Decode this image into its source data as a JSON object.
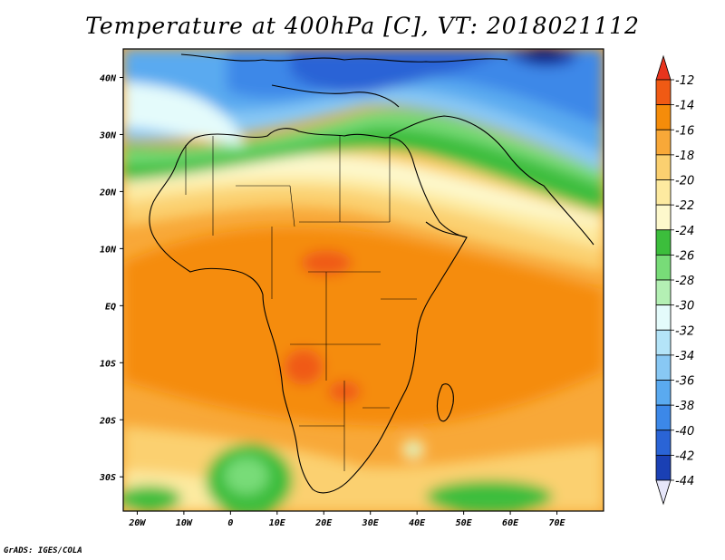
{
  "title": "Temperature at 400hPa [C], VT: 2018021112",
  "credit": "GrADS: IGES/COLA",
  "map": {
    "lon_range": [
      -23,
      80
    ],
    "lat_range": [
      -36,
      45
    ],
    "x_ticks": [
      {
        "lon": -20,
        "label": "20W"
      },
      {
        "lon": -10,
        "label": "10W"
      },
      {
        "lon": 0,
        "label": "0"
      },
      {
        "lon": 10,
        "label": "10E"
      },
      {
        "lon": 20,
        "label": "20E"
      },
      {
        "lon": 30,
        "label": "30E"
      },
      {
        "lon": 40,
        "label": "40E"
      },
      {
        "lon": 50,
        "label": "50E"
      },
      {
        "lon": 60,
        "label": "60E"
      },
      {
        "lon": 70,
        "label": "70E"
      }
    ],
    "y_ticks": [
      {
        "lat": 40,
        "label": "40N"
      },
      {
        "lat": 30,
        "label": "30N"
      },
      {
        "lat": 20,
        "label": "20N"
      },
      {
        "lat": 10,
        "label": "10N"
      },
      {
        "lat": 0,
        "label": "EQ"
      },
      {
        "lat": -10,
        "label": "10S"
      },
      {
        "lat": -20,
        "label": "20S"
      },
      {
        "lat": -30,
        "label": "30S"
      }
    ]
  },
  "colorbar": {
    "levels": [
      {
        "label": "-12",
        "color": "#f05a14"
      },
      {
        "label": "-14",
        "color": "#f58c0a"
      },
      {
        "label": "-16",
        "color": "#f8a838"
      },
      {
        "label": "-18",
        "color": "#fbd070"
      },
      {
        "label": "-20",
        "color": "#fdeaa0"
      },
      {
        "label": "-22",
        "color": "#fdf8cc"
      },
      {
        "label": "-24",
        "color": "#3cbe3c"
      },
      {
        "label": "-26",
        "color": "#78dc78"
      },
      {
        "label": "-28",
        "color": "#b4f0b4"
      },
      {
        "label": "-30",
        "color": "#e4fbfb"
      },
      {
        "label": "-32",
        "color": "#b4e4f8"
      },
      {
        "label": "-34",
        "color": "#88c8f4"
      },
      {
        "label": "-36",
        "color": "#5aaaf0"
      },
      {
        "label": "-38",
        "color": "#3c88e8"
      },
      {
        "label": "-40",
        "color": "#2a64d6"
      },
      {
        "label": "-42",
        "color": "#1a40b4"
      },
      {
        "label": "-44",
        "color": "#0c1878"
      }
    ],
    "top_color": "#e8341e",
    "bottom_color": "#e6e6fa"
  }
}
